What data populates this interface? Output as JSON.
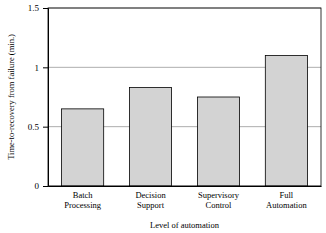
{
  "chart_data": {
    "type": "bar",
    "y_label": "Time-to-recovery from failure (min.)",
    "x_label": "Level of automation",
    "categories": [
      "Batch Processing",
      "Decision Support",
      "Supervisory Control",
      "Full Automation"
    ],
    "values": [
      0.65,
      0.83,
      0.75,
      1.1
    ],
    "color": "#d3d3d3",
    "ylim": [
      0,
      1.5
    ],
    "yticks": [
      0,
      0.5,
      1,
      1.5
    ],
    "grid": true
  }
}
